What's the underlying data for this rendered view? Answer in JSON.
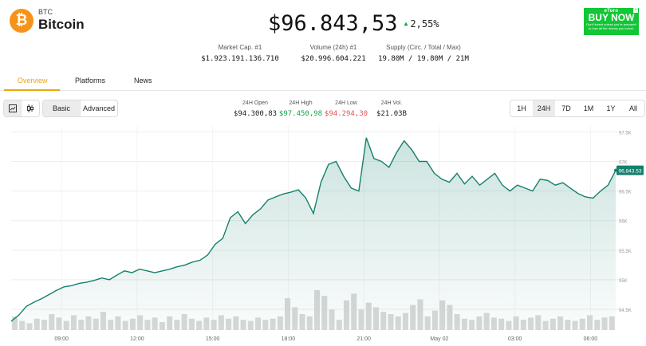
{
  "coin": {
    "symbol": "BTC",
    "name": "Bitcoin",
    "logo_glyph": "₿",
    "price": "$96.843,53",
    "change": "2,55%",
    "change_direction": "up",
    "accent_color": "#f7931a"
  },
  "ad": {
    "brand": "eToro",
    "cta": "BUY NOW",
    "small_text": "Don't invest unless you're prepared to lose all the money you invest.",
    "close_icon": "ⓧ"
  },
  "stats": [
    {
      "label": "Market Cap. #1",
      "value": "$1.923.191.136.710"
    },
    {
      "label": "Volume (24h) #1",
      "value": "$20.996.604.221"
    },
    {
      "label": "Supply (Circ. / Total / Max)",
      "value": "19.80M / 19.80M / 21M"
    }
  ],
  "tabs": [
    {
      "label": "Overview",
      "active": true
    },
    {
      "label": "Platforms",
      "active": false
    },
    {
      "label": "News",
      "active": false
    }
  ],
  "toolbar": {
    "line_icon": "line-chart-icon",
    "candle_icon": "candlestick-icon",
    "modes": [
      {
        "label": "Basic",
        "selected": true
      },
      {
        "label": "Advanced",
        "selected": false
      }
    ]
  },
  "ohlc": [
    {
      "label": "24H Open",
      "value": "$94.300,83",
      "color": "#1a1a1a"
    },
    {
      "label": "24H High",
      "value": "$97.450,98",
      "color": "#16a34a"
    },
    {
      "label": "24H Low",
      "value": "$94.294,30",
      "color": "#e05252"
    },
    {
      "label": "24H Vol.",
      "value": "$21.03B",
      "color": "#1a1a1a"
    }
  ],
  "ranges": [
    {
      "label": "1H",
      "selected": false
    },
    {
      "label": "24H",
      "selected": true
    },
    {
      "label": "7D",
      "selected": false
    },
    {
      "label": "1M",
      "selected": false
    },
    {
      "label": "1Y",
      "selected": false
    },
    {
      "label": "All",
      "selected": false
    }
  ],
  "chart_data": {
    "type": "area",
    "line_color": "#16806e",
    "grid": true,
    "y_ticks": [
      "97.5K",
      "97K",
      "96.5K",
      "96K",
      "95.5K",
      "95K",
      "94.5K"
    ],
    "y_tick_values": [
      97500,
      97000,
      96500,
      96000,
      95500,
      95000,
      94500
    ],
    "ylim": [
      94150,
      97600
    ],
    "x_ticks": [
      "09:00",
      "12:00",
      "15:00",
      "18:00",
      "21:00",
      "May 02",
      "03:00",
      "06:00"
    ],
    "x_tick_hours": [
      2.0,
      5.0,
      8.0,
      11.0,
      14.0,
      17.0,
      20.0,
      23.0
    ],
    "xlim": [
      0.0,
      24.0
    ],
    "current_price_label": "96,843.53",
    "series": [
      {
        "x": [
          0,
          0.3,
          0.6,
          0.9,
          1.2,
          1.5,
          1.8,
          2.1,
          2.4,
          2.7,
          3.0,
          3.3,
          3.6,
          3.9,
          4.2,
          4.5,
          4.8,
          5.1,
          5.4,
          5.7,
          6.0,
          6.3,
          6.6,
          6.9,
          7.2,
          7.5,
          7.8,
          8.1,
          8.4,
          8.7,
          9.0,
          9.3,
          9.6,
          9.9,
          10.2,
          10.5,
          10.8,
          11.1,
          11.4,
          11.7,
          12.0,
          12.3,
          12.6,
          12.9,
          13.2,
          13.5,
          13.8,
          14.1,
          14.4,
          14.7,
          15.0,
          15.3,
          15.6,
          15.9,
          16.2,
          16.5,
          16.8,
          17.1,
          17.4,
          17.7,
          18.0,
          18.3,
          18.6,
          18.9,
          19.2,
          19.5,
          19.8,
          20.1,
          20.4,
          20.7,
          21.0,
          21.3,
          21.6,
          21.9,
          22.2,
          22.5,
          22.8,
          23.1,
          23.4,
          23.7,
          24.0
        ],
        "values": [
          94300,
          94400,
          94550,
          94620,
          94680,
          94750,
          94820,
          94880,
          94900,
          94940,
          94960,
          94990,
          95030,
          95000,
          95080,
          95150,
          95120,
          95180,
          95150,
          95120,
          95150,
          95180,
          95220,
          95250,
          95300,
          95330,
          95420,
          95600,
          95700,
          96050,
          96150,
          95950,
          96100,
          96200,
          96350,
          96400,
          96450,
          96480,
          96520,
          96380,
          96120,
          96650,
          96950,
          97000,
          96750,
          96550,
          96500,
          97400,
          97050,
          97000,
          96900,
          97150,
          97350,
          97200,
          97000,
          97000,
          96800,
          96700,
          96650,
          96800,
          96620,
          96750,
          96600,
          96700,
          96800,
          96600,
          96500,
          96600,
          96550,
          96500,
          96700,
          96680,
          96600,
          96640,
          96550,
          96460,
          96400,
          96380,
          96500,
          96600,
          96850
        ]
      }
    ],
    "volume": [
      12,
      8,
      6,
      10,
      9,
      14,
      11,
      8,
      13,
      9,
      12,
      10,
      16,
      9,
      12,
      8,
      10,
      13,
      9,
      11,
      7,
      12,
      9,
      14,
      10,
      8,
      11,
      9,
      13,
      10,
      12,
      9,
      8,
      11,
      9,
      10,
      12,
      28,
      20,
      14,
      12,
      35,
      30,
      18,
      9,
      26,
      32,
      18,
      24,
      20,
      16,
      14,
      12,
      15,
      22,
      27,
      12,
      17,
      26,
      22,
      14,
      10,
      9,
      12,
      15,
      11,
      10,
      8,
      12,
      9,
      11,
      13,
      8,
      10,
      12,
      9,
      8,
      10,
      13,
      9,
      11,
      12
    ]
  }
}
